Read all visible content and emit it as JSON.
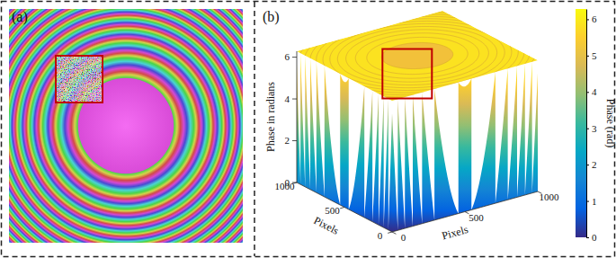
{
  "chart_data": [
    {
      "type": "image",
      "label": "(a)",
      "xlim": [
        0,
        1000
      ],
      "ylim": [
        0,
        1000
      ],
      "tick_labels": false,
      "wrap_radii": [
        205,
        290,
        355,
        410,
        458,
        502,
        542,
        580,
        615,
        648,
        680,
        710
      ],
      "noise_region": {
        "x": [
          200,
          400
        ],
        "y": [
          200,
          400
        ]
      },
      "color": "#c00000"
    },
    {
      "type": "surface",
      "label": "(b)",
      "x_label": "Pixels",
      "y_label": "Pixels",
      "z_label": "Phase in radians",
      "xlim": [
        0,
        1000
      ],
      "xticks": [
        0,
        500,
        1000
      ],
      "ylim": [
        0,
        1000
      ],
      "yticks": [
        0,
        500,
        1000
      ],
      "zlim": [
        0,
        6.2832
      ],
      "zticks": [
        0,
        2,
        4,
        6
      ],
      "wrap_radii": [
        205,
        290,
        355,
        410,
        458,
        502,
        542,
        580,
        615,
        648,
        680,
        710
      ],
      "highlight_region": {
        "x": [
          200,
          400
        ],
        "y": [
          200,
          400
        ]
      },
      "color": "#c00000",
      "colorbar": {
        "label": "Phase (rad)",
        "range": [
          0,
          6.2832
        ],
        "ticks": [
          0,
          1,
          2,
          3,
          4,
          5,
          6
        ]
      }
    }
  ]
}
